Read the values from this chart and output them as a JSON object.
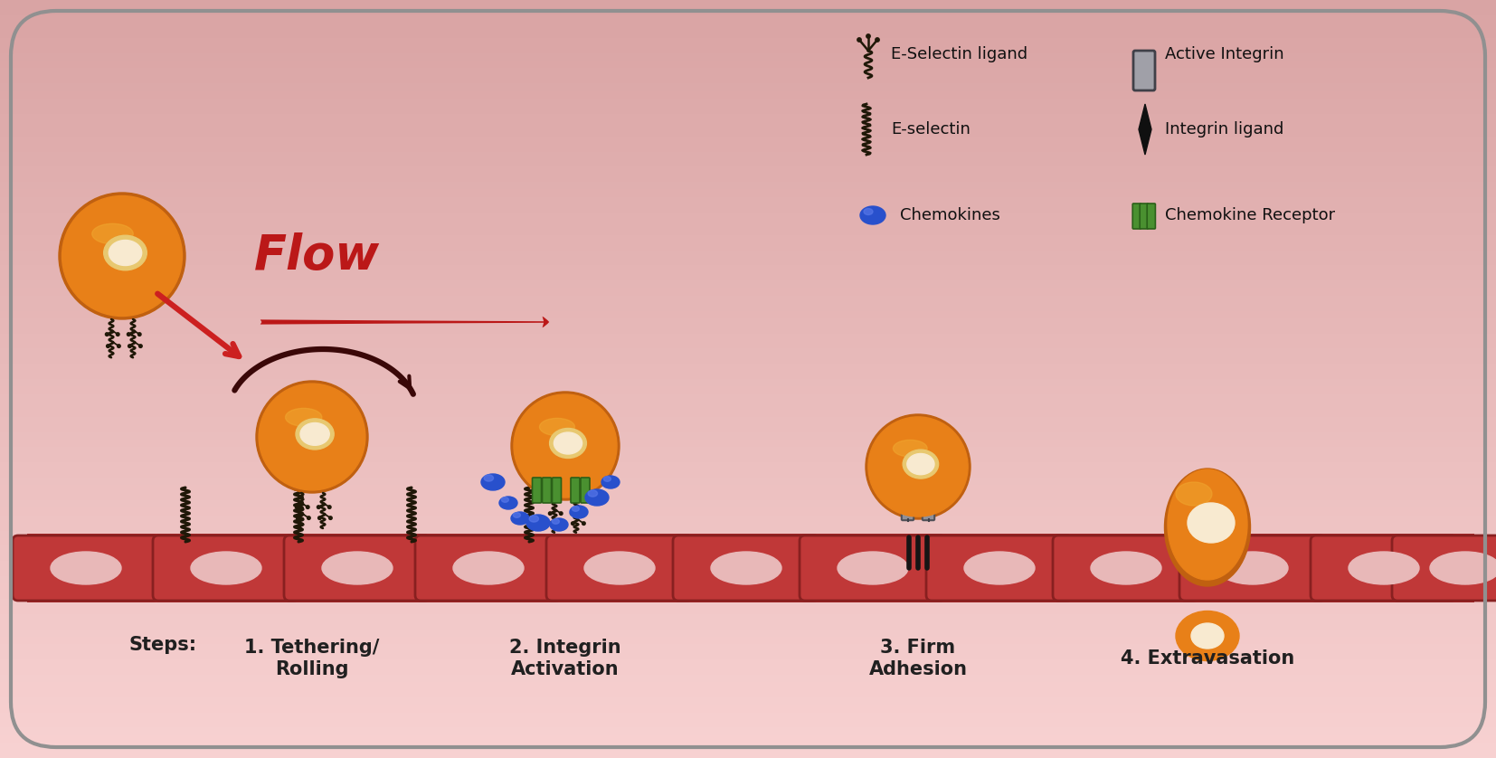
{
  "bg_color": "#f0a0a0",
  "bg_gradient_top": "#f8d0d0",
  "bg_gradient_bottom": "#e89090",
  "border_color": "#b0b0b0",
  "title": "Flow",
  "endothelium_color": "#aa2828",
  "endothelium_cell_color": "#c03838",
  "cell_nucleus_color": "#e8b8b8",
  "blood_cell_color": "#e88018",
  "blood_cell_nucleus_color": "#f8ead0",
  "steps": [
    "Steps:",
    "1. Tethering/\nRolling",
    "2. Integrin\nActivation",
    "3. Firm\nAdhesion",
    "4. Extravasation"
  ],
  "legend_labels": [
    "E-Selectin ligand",
    "Active Integrin",
    "E-selectin",
    "Integrin ligand",
    "Chemokines",
    "Chemokine Receptor"
  ],
  "flow_arrow_color": "#bb1818",
  "rolling_arrow_color": "#3a0808",
  "tethering_arrow_color": "#cc2020",
  "chemokine_color": "#2850cc",
  "integrin_color": "#909098",
  "integrin_ligand_color": "#151515",
  "chemokine_receptor_color": "#4a9030",
  "eselectin_color": "#201808",
  "eselectin_ligand_color": "#201808"
}
